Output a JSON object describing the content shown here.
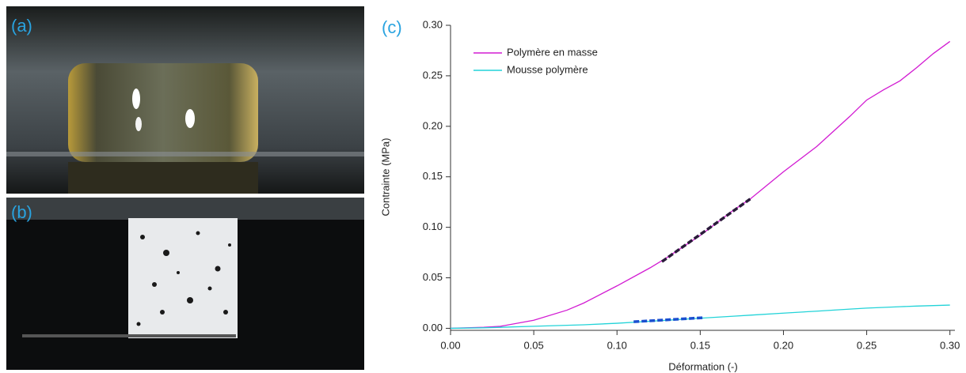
{
  "photo_labels": [
    "(a)",
    "(b)"
  ],
  "chart_data": {
    "type": "line",
    "label": "(c)",
    "x_label": "Déformation (-)",
    "y_label": "Contrainte (MPa)",
    "x": [
      0,
      0.02,
      0.03,
      0.05,
      0.07,
      0.08,
      0.1,
      0.12,
      0.13,
      0.15,
      0.17,
      0.18,
      0.2,
      0.22,
      0.24,
      0.25,
      0.26,
      0.27,
      0.28,
      0.29,
      0.3
    ],
    "series": [
      {
        "name": "Polymère en masse",
        "color": "#d21bd2",
        "values": [
          0,
          0.001,
          0.002,
          0.008,
          0.018,
          0.025,
          0.042,
          0.06,
          0.07,
          0.092,
          0.117,
          0.128,
          0.155,
          0.18,
          0.21,
          0.226,
          0.236,
          0.245,
          0.258,
          0.272,
          0.284
        ]
      },
      {
        "name": "Mousse polymère",
        "color": "#22d3d8",
        "values": [
          0,
          0.0005,
          0.001,
          0.002,
          0.003,
          0.0035,
          0.005,
          0.007,
          0.008,
          0.01,
          0.012,
          0.013,
          0.015,
          0.017,
          0.019,
          0.02,
          0.0207,
          0.0214,
          0.022,
          0.0225,
          0.023
        ]
      }
    ],
    "fits": [
      {
        "color": "#2a1a3a",
        "x": [
          0.127,
          0.18
        ],
        "values": [
          0.066,
          0.128
        ]
      },
      {
        "color": "#1a4fd0",
        "x": [
          0.11,
          0.152
        ],
        "values": [
          0.0065,
          0.0105
        ]
      }
    ],
    "xlim": [
      0,
      0.303
    ],
    "ylim": [
      -0.002,
      0.3
    ],
    "xticks": [
      {
        "value": 0,
        "label": "0.00"
      },
      {
        "value": 0.05,
        "label": "0.05"
      },
      {
        "value": 0.1,
        "label": "0.10"
      },
      {
        "value": 0.15,
        "label": "0.15"
      },
      {
        "value": 0.2,
        "label": "0.20"
      },
      {
        "value": 0.25,
        "label": "0.25"
      },
      {
        "value": 0.3,
        "label": "0.30"
      }
    ],
    "yticks": [
      {
        "value": 0,
        "label": "0.00"
      },
      {
        "value": 0.05,
        "label": "0.05"
      },
      {
        "value": 0.1,
        "label": "0.10"
      },
      {
        "value": 0.15,
        "label": "0.15"
      },
      {
        "value": 0.2,
        "label": "0.20"
      },
      {
        "value": 0.25,
        "label": "0.25"
      },
      {
        "value": 0.3,
        "label": "0.30"
      }
    ],
    "legend": "upper-left",
    "grid": false
  }
}
